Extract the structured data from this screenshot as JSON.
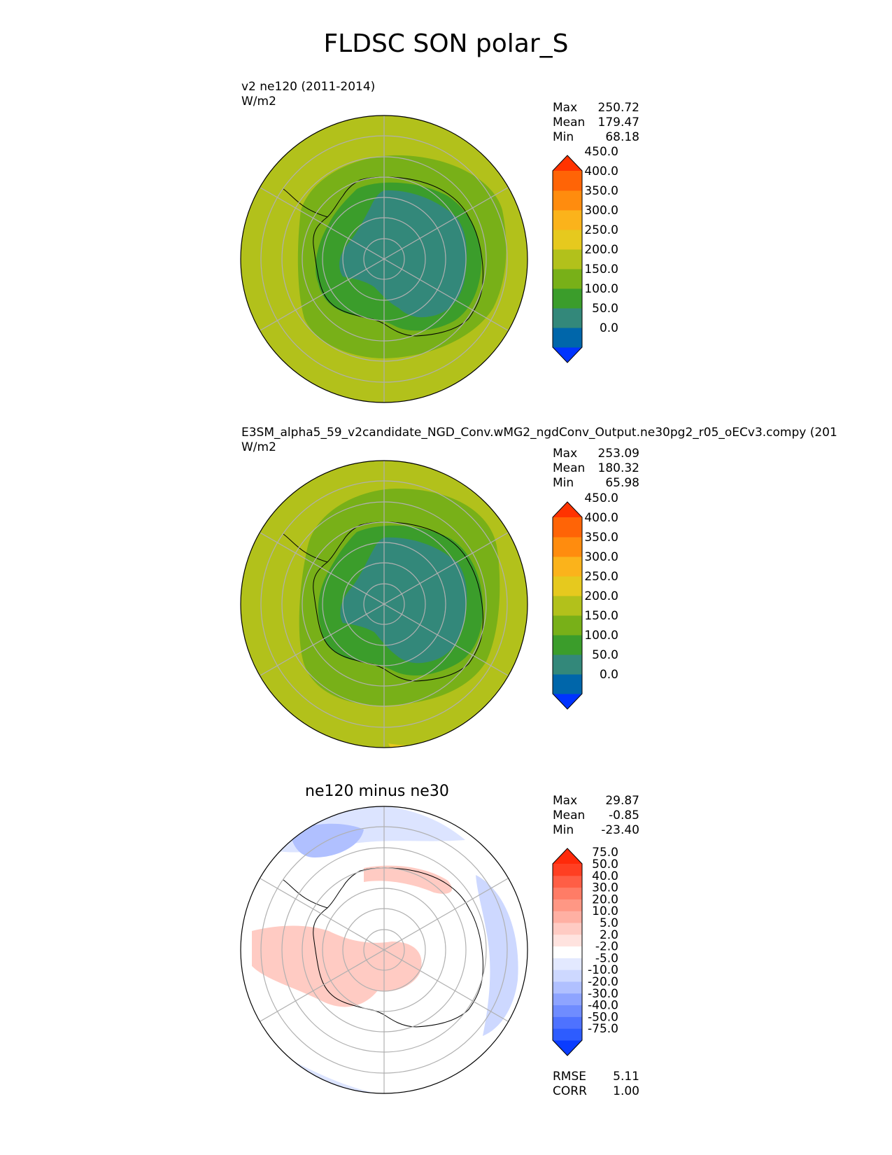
{
  "figure": {
    "title": "FLDSC SON polar_S"
  },
  "panels": [
    {
      "id": "test",
      "title_line1": "v2 ne120 (2011-2014)",
      "units": "W/m2",
      "stats": [
        {
          "label": "Max",
          "value": "250.72"
        },
        {
          "label": "Mean",
          "value": "179.47"
        },
        {
          "label": "Min",
          "value": "68.18"
        }
      ],
      "colorbar": {
        "levels": [
          "0.0",
          "50.0",
          "100.0",
          "150.0",
          "200.0",
          "250.0",
          "300.0",
          "350.0",
          "400.0",
          "450.0"
        ],
        "colors": [
          "#0033ff",
          "#0066aa",
          "#33887a",
          "#3b9d2b",
          "#78b018",
          "#b2c11b",
          "#e6c91e",
          "#fbb31b",
          "#ff8c0e",
          "#ff6406",
          "#ff3300"
        ]
      }
    },
    {
      "id": "reference",
      "title_line1": "E3SM_alpha5_59_v2candidate_NGD_Conv.wMG2_ngdConv_Output.ne30pg2_r05_oECv3.compy (201",
      "units": "W/m2",
      "stats": [
        {
          "label": "Max",
          "value": "253.09"
        },
        {
          "label": "Mean",
          "value": "180.32"
        },
        {
          "label": "Min",
          "value": "65.98"
        }
      ],
      "colorbar": {
        "levels": [
          "0.0",
          "50.0",
          "100.0",
          "150.0",
          "200.0",
          "250.0",
          "300.0",
          "350.0",
          "400.0",
          "450.0"
        ],
        "colors": [
          "#0033ff",
          "#0066aa",
          "#33887a",
          "#3b9d2b",
          "#78b018",
          "#b2c11b",
          "#e6c91e",
          "#fbb31b",
          "#ff8c0e",
          "#ff6406",
          "#ff3300"
        ]
      }
    },
    {
      "id": "difference",
      "title_line1": "ne120 minus ne30",
      "units": "",
      "stats": [
        {
          "label": "Max",
          "value": "29.87"
        },
        {
          "label": "Mean",
          "value": "-0.85"
        },
        {
          "label": "Min",
          "value": "-23.40"
        }
      ],
      "extra_stats": [
        {
          "label": "RMSE",
          "value": "5.11"
        },
        {
          "label": "CORR",
          "value": "1.00"
        }
      ],
      "colorbar": {
        "levels": [
          "-75.0",
          "-50.0",
          "-40.0",
          "-30.0",
          "-20.0",
          "-10.0",
          "-5.0",
          "-2.0",
          "2.0",
          "5.0",
          "10.0",
          "20.0",
          "30.0",
          "40.0",
          "50.0",
          "75.0"
        ],
        "colors": [
          "#0a3cff",
          "#2d5cff",
          "#4e72ff",
          "#6f8cff",
          "#8ea4ff",
          "#b0c0ff",
          "#cdd8ff",
          "#e3e9ff",
          "#ffffff",
          "#ffe3df",
          "#ffcbc3",
          "#ffb0a3",
          "#ff9784",
          "#ff7c66",
          "#ff5e45",
          "#ff3f22",
          "#ff2a0a"
        ]
      }
    }
  ],
  "chart_data": [
    {
      "type": "heatmap",
      "title": "v2 ne120 (2011-2014)",
      "subtitle": "W/m2",
      "projection": "south polar stereographic",
      "field": "FLDSC",
      "season": "SON",
      "region": "polar_S",
      "stats": {
        "max": 250.72,
        "mean": 179.47,
        "min": 68.18
      },
      "contour_levels": [
        0,
        50,
        100,
        150,
        200,
        250,
        300,
        350,
        400,
        450
      ]
    },
    {
      "type": "heatmap",
      "title": "E3SM_alpha5_59_v2candidate_NGD_Conv.wMG2_ngdConv_Output.ne30pg2_r05_oECv3.compy (201",
      "subtitle": "W/m2",
      "projection": "south polar stereographic",
      "stats": {
        "max": 253.09,
        "mean": 180.32,
        "min": 65.98
      },
      "contour_levels": [
        0,
        50,
        100,
        150,
        200,
        250,
        300,
        350,
        400,
        450
      ]
    },
    {
      "type": "heatmap",
      "title": "ne120 minus ne30",
      "projection": "south polar stereographic",
      "stats": {
        "max": 29.87,
        "mean": -0.85,
        "min": -23.4,
        "rmse": 5.11,
        "corr": 1.0
      },
      "contour_levels": [
        -75,
        -50,
        -40,
        -30,
        -20,
        -10,
        -5,
        -2,
        2,
        5,
        10,
        20,
        30,
        40,
        50,
        75
      ]
    }
  ]
}
